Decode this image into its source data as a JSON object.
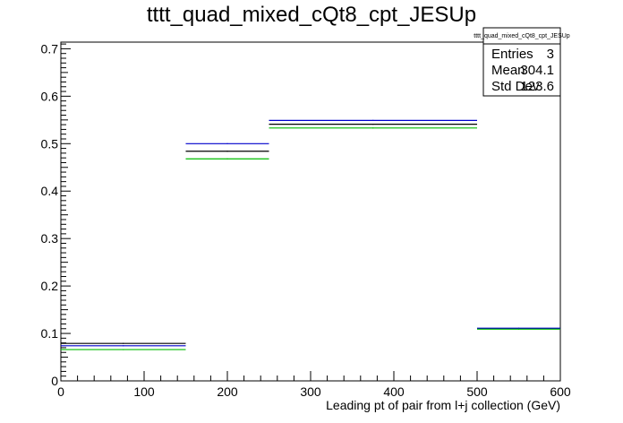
{
  "chart_data": {
    "type": "step",
    "title": "tttt_quad_mixed_cQt8_cpt_JESUp",
    "xlabel": "Leading pt of pair from l+j collection (GeV)",
    "ylabel": "",
    "xlim": [
      0,
      600
    ],
    "ylim": [
      0,
      0.714
    ],
    "x_ticks": [
      0,
      100,
      200,
      300,
      400,
      500,
      600
    ],
    "x_tick_labels": [
      "0",
      "100",
      "200",
      "300",
      "400",
      "500",
      "600"
    ],
    "y_ticks": [
      0,
      0.1,
      0.2,
      0.3,
      0.4,
      0.5,
      0.6,
      0.7
    ],
    "y_tick_labels": [
      "0",
      "0.1",
      "0.2",
      "0.3",
      "0.4",
      "0.5",
      "0.6",
      "0.7"
    ],
    "grid": false,
    "bin_edges": [
      0,
      150,
      250,
      500,
      600
    ],
    "series": [
      {
        "color": "#000000",
        "values": [
          0.079,
          0.484,
          0.541,
          0.11
        ]
      },
      {
        "color": "#0000cc",
        "values": [
          0.074,
          0.5,
          0.549,
          0.111
        ]
      },
      {
        "color": "#00bb00",
        "values": [
          0.066,
          0.468,
          0.533,
          0.109
        ]
      }
    ],
    "stats_box": {
      "name": "tttt_quad_mixed_cQt8_cpt_JESUp",
      "rows": [
        {
          "label": "Entries",
          "value": "3"
        },
        {
          "label": "Mean",
          "value": "304.1"
        },
        {
          "label": "Std Dev",
          "value": "123.6"
        }
      ]
    }
  }
}
